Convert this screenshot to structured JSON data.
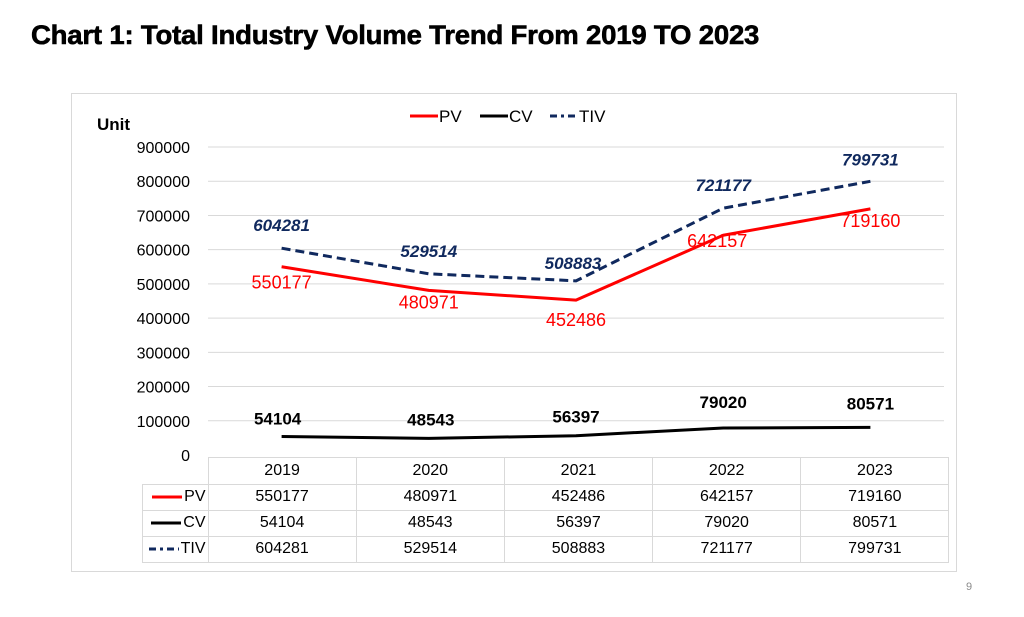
{
  "page": {
    "title": "Chart 1: Total Industry Volume Trend From 2019 TO 2023",
    "page_number": "9"
  },
  "colors": {
    "PV": "#ff0000",
    "CV": "#000000",
    "TIV": "#10295e"
  },
  "chart_data": {
    "type": "line",
    "title": "Chart 1: Total Industry Volume Trend From 2019 TO 2023",
    "ylabel": "Unit",
    "xlabel": "",
    "ylim": [
      0,
      900000
    ],
    "yticks": [
      0,
      100000,
      200000,
      300000,
      400000,
      500000,
      600000,
      700000,
      800000,
      900000
    ],
    "ytick_labels": [
      "0",
      "100000",
      "200000",
      "300000",
      "400000",
      "500000",
      "600000",
      "700000",
      "800000",
      "900000"
    ],
    "grid": true,
    "legend_position": "top-center",
    "categories": [
      "2019",
      "2020",
      "2021",
      "2022",
      "2023"
    ],
    "series": [
      {
        "name": "PV",
        "style": "solid",
        "values": [
          550177,
          480971,
          452486,
          642157,
          719160
        ],
        "labels": [
          "550177",
          "480971",
          "452486",
          "642157",
          "719160"
        ]
      },
      {
        "name": "CV",
        "style": "solid",
        "values": [
          54104,
          48543,
          56397,
          79020,
          80571
        ],
        "labels": [
          "54104",
          "48543",
          "56397",
          "79020",
          "80571"
        ]
      },
      {
        "name": "TIV",
        "style": "dashed",
        "values": [
          604281,
          529514,
          508883,
          721177,
          799731
        ],
        "labels": [
          "604281",
          "529514",
          "508883",
          "721177",
          "799731"
        ]
      }
    ],
    "data_table": {
      "header": [
        "2019",
        "2020",
        "2021",
        "2022",
        "2023"
      ],
      "rows": [
        {
          "name": "PV",
          "cells": [
            "550177",
            "480971",
            "452486",
            "642157",
            "719160"
          ]
        },
        {
          "name": "CV",
          "cells": [
            "54104",
            "48543",
            "56397",
            "79020",
            "80571"
          ]
        },
        {
          "name": "TIV",
          "cells": [
            "604281",
            "529514",
            "508883",
            "721177",
            "799731"
          ]
        }
      ]
    }
  }
}
